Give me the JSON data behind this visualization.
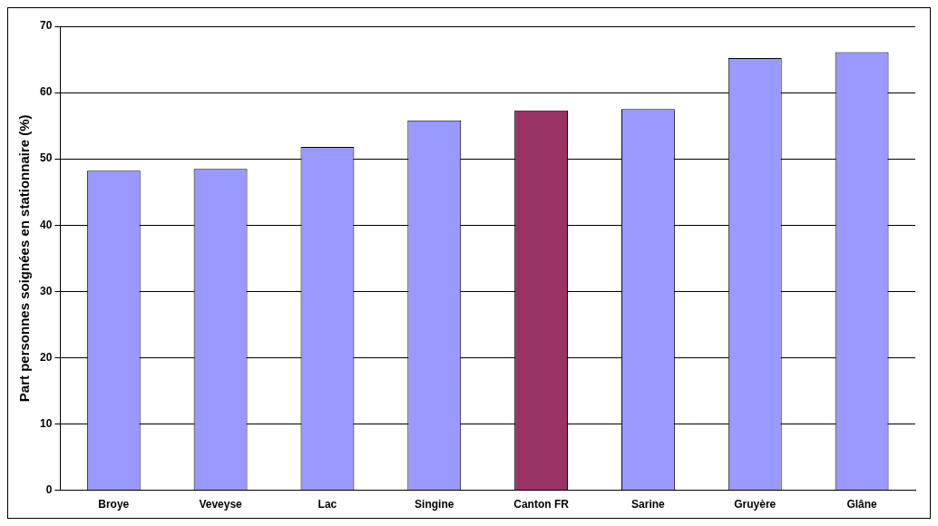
{
  "chart_data": {
    "type": "bar",
    "ylabel": "Part personnes soignées en stationnaire (%)",
    "categories": [
      "Broye",
      "Veveyse",
      "Lac",
      "Singine",
      "Canton FR",
      "Sarine",
      "Gruyère",
      "Glâne"
    ],
    "values": [
      48.2,
      48.5,
      51.8,
      55.8,
      57.3,
      57.5,
      65.2,
      66.1
    ],
    "colors": [
      "#9999ff",
      "#9999ff",
      "#9999ff",
      "#9999ff",
      "#993366",
      "#9999ff",
      "#9999ff",
      "#9999ff"
    ],
    "ylim": [
      0,
      70
    ],
    "yticks": [
      0,
      10,
      20,
      30,
      40,
      50,
      60,
      70
    ],
    "grid": "y",
    "legend": false
  }
}
